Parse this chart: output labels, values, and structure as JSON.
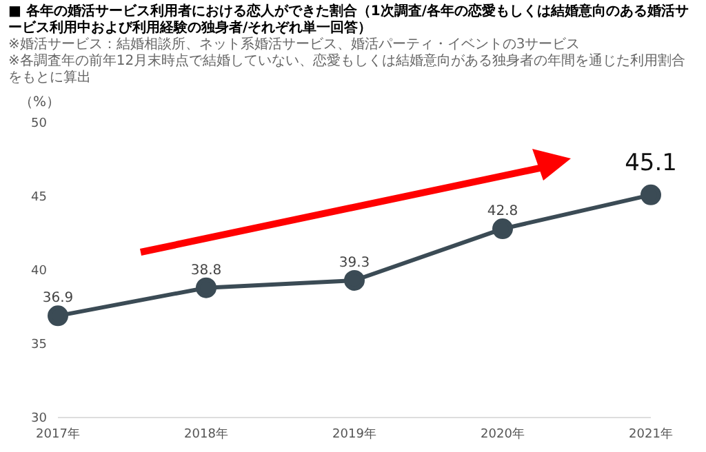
{
  "chart_data": {
    "type": "line",
    "title": "■ 各年の婚活サービス利用者における恋人ができた割合（1次調査/各年の恋愛もしくは結婚意向のある婚活サービス利用中および利用経験の独身者/それぞれ単一回答）",
    "annotations": [
      "※婚活サービス：結婚相談所、ネット系婚活サービス、婚活パーティ・イベントの3サービス",
      "※各調査年の前年12月末時点で結婚していない、恋愛もしくは結婚意向がある独身者の年間を通じた利用割合をもとに算出"
    ],
    "ylabel": "（%）",
    "categories": [
      "2017年",
      "2018年",
      "2019年",
      "2020年",
      "2021年"
    ],
    "series": [
      {
        "color": "#3b4b55",
        "values": [
          36.9,
          38.8,
          39.3,
          42.8,
          45.1
        ]
      }
    ],
    "ylim": [
      30,
      50
    ],
    "yticks": [
      30,
      35,
      40,
      45,
      50
    ],
    "data_labels": true,
    "marker": "circle",
    "grid": false,
    "legend": false
  }
}
